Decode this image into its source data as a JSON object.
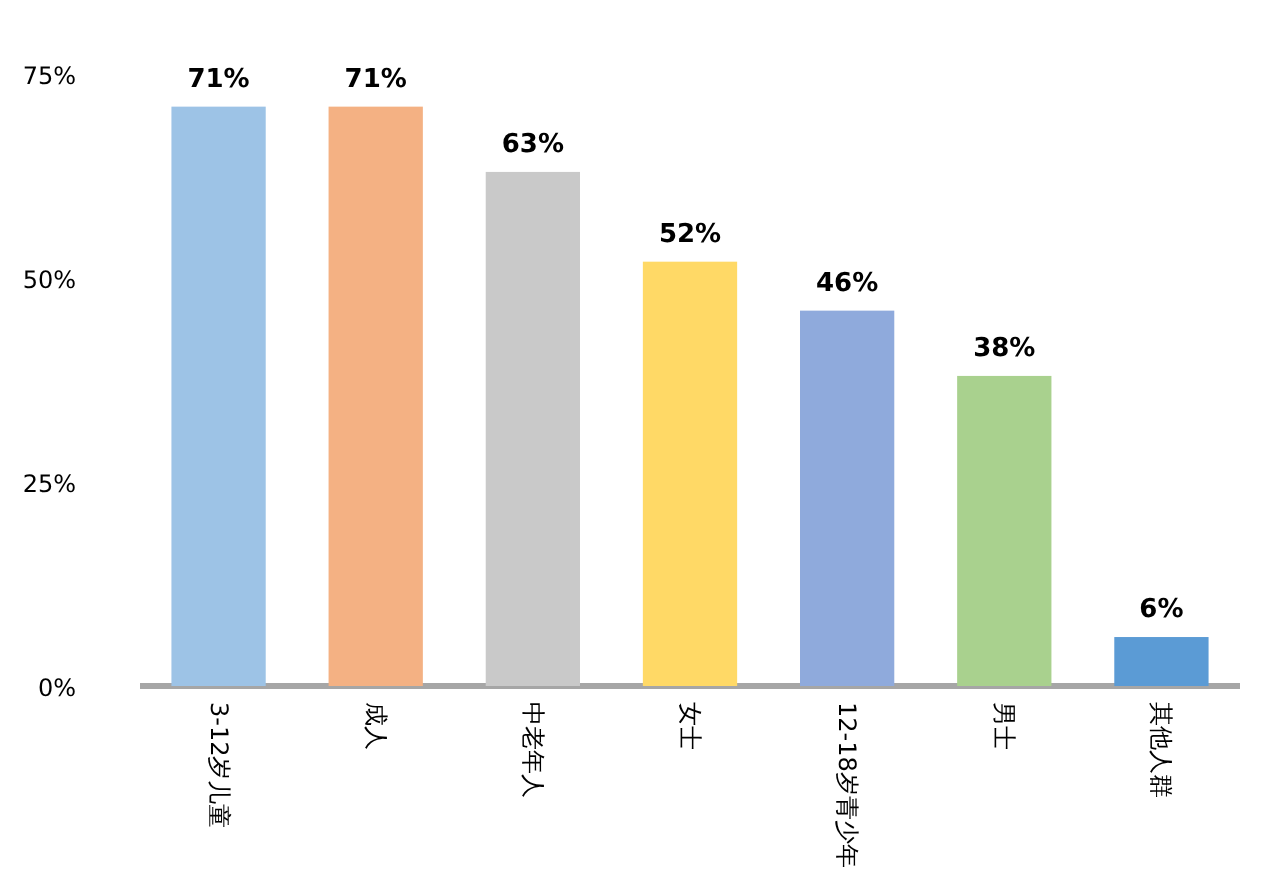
{
  "chart_data": {
    "type": "bar",
    "categories": [
      "3-12岁儿童",
      "成人",
      "中老年人",
      "女士",
      "12-18岁青少年",
      "男士",
      "其他人群"
    ],
    "values": [
      71,
      71,
      63,
      52,
      46,
      38,
      6
    ],
    "colors": [
      "#9dc3e6",
      "#f4b183",
      "#c9c9c9",
      "#ffd966",
      "#8faadc",
      "#a9d18e",
      "#5b9bd5"
    ],
    "value_labels": [
      "71%",
      "71%",
      "63%",
      "52%",
      "46%",
      "38%",
      "6%"
    ],
    "ylim": [
      0,
      75
    ],
    "yticks": [
      {
        "value": 0,
        "label": "0%"
      },
      {
        "value": 25,
        "label": "25%"
      },
      {
        "value": 50,
        "label": "50%"
      },
      {
        "value": 75,
        "label": "75%"
      }
    ],
    "grid": false
  }
}
